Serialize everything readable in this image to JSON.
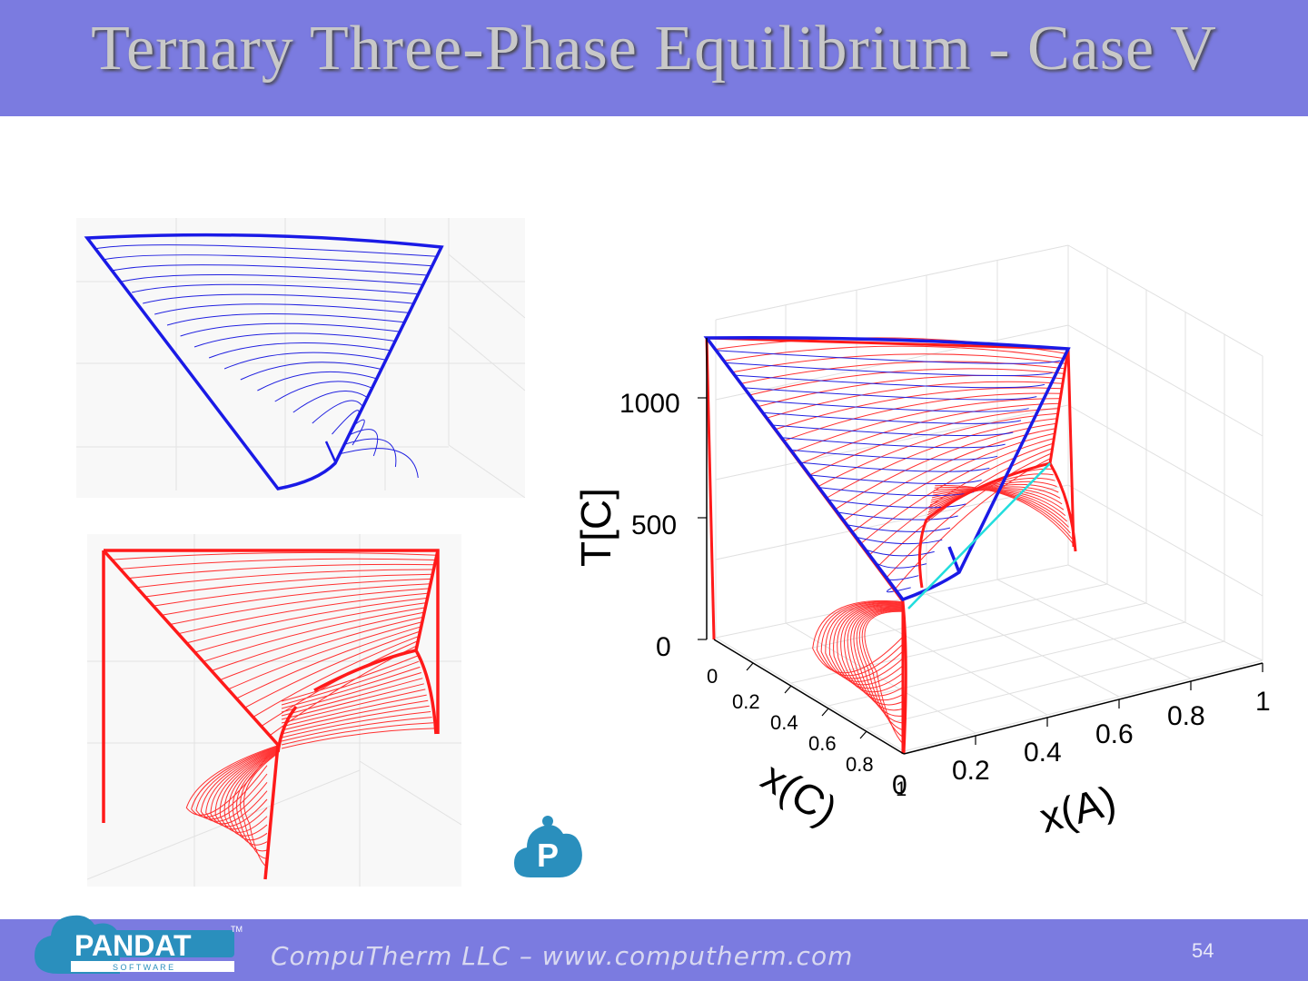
{
  "slide": {
    "title": "Ternary Three-Phase Equilibrium - Case V",
    "footer": "CompuTherm LLC – www.computherm.com",
    "page_number": "54",
    "logo_text": "PANDAT",
    "logo_subtext": "S O F T W A R E",
    "logo_tm": "TM",
    "p_logo_letter": "P"
  },
  "main_plot": {
    "z_label": "T[C]",
    "x_label": "x(A)",
    "y_label": "x(C)",
    "z_ticks": [
      "1000",
      "500",
      "0"
    ],
    "x_ticks": [
      "0",
      "0.2",
      "0.4",
      "0.6",
      "0.8",
      "1"
    ],
    "y_ticks": [
      "0",
      "0.2",
      "0.4",
      "0.6",
      "0.8",
      "1"
    ]
  },
  "colors": {
    "header": "#7b7be0",
    "blue_surface": "#1a1ae6",
    "red_surface": "#ff1a1a",
    "cyan_line": "#22dddd",
    "grid": "#e4e4e4"
  }
}
